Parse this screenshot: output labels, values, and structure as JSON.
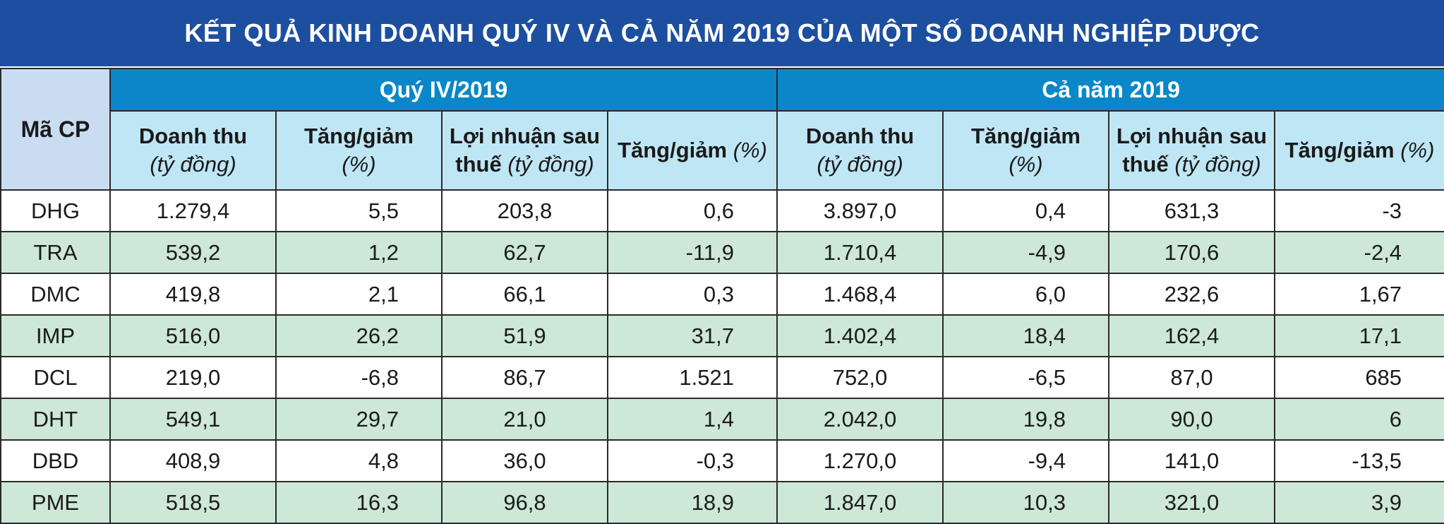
{
  "title": "KẾT QUẢ KINH DOANH QUÝ IV VÀ CẢ NĂM 2019 CỦA MỘT SỐ DOANH NGHIỆP DƯỢC",
  "header": {
    "code_label": "Mã CP",
    "group_q4": "Quý IV/2019",
    "group_year": "Cả năm 2019",
    "revenue": "Doanh thu",
    "revenue_unit": "(tỷ đồng)",
    "change": "Tăng/giảm",
    "change_unit": "(%)",
    "profit_line1": "Lợi nhuận sau",
    "profit_line2": "thuế",
    "profit_unit": "(tỷ đồng)",
    "change2": "Tăng/giảm",
    "change2_unit": "(%)"
  },
  "rows": [
    {
      "code": "DHG",
      "q4_rev": "1.279,4",
      "q4_rev_chg": "5,5",
      "q4_profit": "203,8",
      "q4_profit_chg": "0,6",
      "y_rev": "3.897,0",
      "y_rev_chg": "0,4",
      "y_profit": "631,3",
      "y_profit_chg": "-3"
    },
    {
      "code": "TRA",
      "q4_rev": "539,2",
      "q4_rev_chg": "1,2",
      "q4_profit": "62,7",
      "q4_profit_chg": "-11,9",
      "y_rev": "1.710,4",
      "y_rev_chg": "-4,9",
      "y_profit": "170,6",
      "y_profit_chg": "-2,4"
    },
    {
      "code": "DMC",
      "q4_rev": "419,8",
      "q4_rev_chg": "2,1",
      "q4_profit": "66,1",
      "q4_profit_chg": "0,3",
      "y_rev": "1.468,4",
      "y_rev_chg": "6,0",
      "y_profit": "232,6",
      "y_profit_chg": "1,67"
    },
    {
      "code": "IMP",
      "q4_rev": "516,0",
      "q4_rev_chg": "26,2",
      "q4_profit": "51,9",
      "q4_profit_chg": "31,7",
      "y_rev": "1.402,4",
      "y_rev_chg": "18,4",
      "y_profit": "162,4",
      "y_profit_chg": "17,1"
    },
    {
      "code": "DCL",
      "q4_rev": "219,0",
      "q4_rev_chg": "-6,8",
      "q4_profit": "86,7",
      "q4_profit_chg": "1.521",
      "y_rev": "752,0",
      "y_rev_chg": "-6,5",
      "y_profit": "87,0",
      "y_profit_chg": "685"
    },
    {
      "code": "DHT",
      "q4_rev": "549,1",
      "q4_rev_chg": "29,7",
      "q4_profit": "21,0",
      "q4_profit_chg": "1,4",
      "y_rev": "2.042,0",
      "y_rev_chg": "19,8",
      "y_profit": "90,0",
      "y_profit_chg": "6"
    },
    {
      "code": "DBD",
      "q4_rev": "408,9",
      "q4_rev_chg": "4,8",
      "q4_profit": "36,0",
      "q4_profit_chg": "-0,3",
      "y_rev": "1.270,0",
      "y_rev_chg": "-9,4",
      "y_profit": "141,0",
      "y_profit_chg": "-13,5"
    },
    {
      "code": "PME",
      "q4_rev": "518,5",
      "q4_rev_chg": "16,3",
      "q4_profit": "96,8",
      "q4_profit_chg": "18,9",
      "y_rev": "1.847,0",
      "y_rev_chg": "10,3",
      "y_profit": "321,0",
      "y_profit_chg": "3,9"
    }
  ],
  "colors": {
    "title_bg": "#1d4fa0",
    "group_header_bg": "#0a87c8",
    "sub_header_bg": "#bfe6f5",
    "code_header_bg": "#c9dcf2",
    "row_alt_bg": "#cde8d6"
  }
}
